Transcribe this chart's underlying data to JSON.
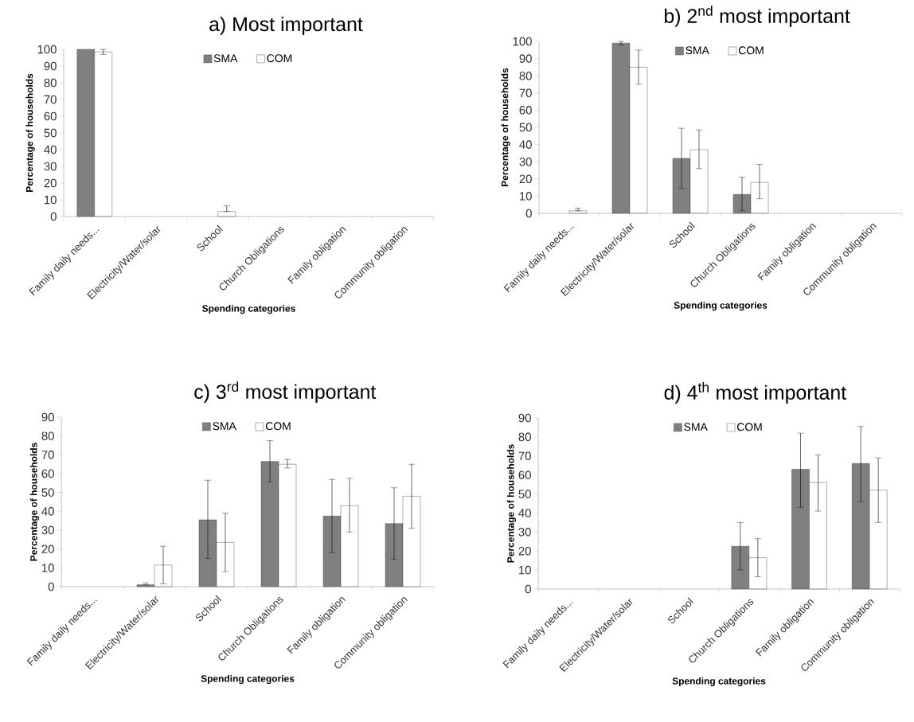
{
  "chart_data": [
    {
      "type": "bar",
      "title": "a) Most important",
      "xlabel": "Spending categories",
      "ylabel": "Percentage of households",
      "categories": [
        "Family daily needs...",
        "Electricity/Water/solar",
        "School",
        "Church Obligations",
        "Family obligation",
        "Community obligation"
      ],
      "series": [
        {
          "name": "SMA",
          "color": "#808080",
          "values": [
            100,
            null,
            null,
            null,
            null,
            null
          ],
          "errors": [
            null,
            null,
            null,
            null,
            null,
            null
          ]
        },
        {
          "name": "COM",
          "color": "#ffffff",
          "values": [
            98.5,
            null,
            3,
            null,
            null,
            null
          ],
          "errors": [
            [
              97,
              100
            ],
            null,
            [
              3,
              6.5
            ],
            null,
            null,
            null
          ]
        }
      ],
      "ylim": [
        0,
        100
      ],
      "yticks": [
        0,
        10,
        20,
        30,
        40,
        50,
        60,
        70,
        80,
        90,
        100
      ],
      "legend": "top"
    },
    {
      "type": "bar",
      "title": "b) 2$^{nd}$  most important",
      "xlabel": "Spending categories",
      "ylabel": "Percentage of households",
      "categories": [
        "Family daily needs...",
        "Electricity/Water/solar",
        "School",
        "Church Obligations",
        "Family obligation",
        "Community obligation"
      ],
      "series": [
        {
          "name": "SMA",
          "color": "#808080",
          "values": [
            null,
            99,
            32,
            11,
            null,
            null
          ],
          "errors": [
            null,
            [
              98,
              100
            ],
            [
              14.5,
              49.5
            ],
            [
              1.5,
              21
            ],
            null,
            null
          ]
        },
        {
          "name": "COM",
          "color": "#ffffff",
          "values": [
            1.5,
            85,
            37,
            18,
            null,
            null
          ],
          "errors": [
            [
              1.5,
              3
            ],
            [
              75,
              95
            ],
            [
              26,
              48.5
            ],
            [
              8.5,
              28.5
            ],
            null,
            null
          ]
        }
      ],
      "ylim": [
        0,
        100
      ],
      "yticks": [
        0,
        10,
        20,
        30,
        40,
        50,
        60,
        70,
        80,
        90,
        100
      ],
      "legend": "top"
    },
    {
      "type": "bar",
      "title": "c) 3$^{rd}$ most important",
      "xlabel": "Spending categories",
      "ylabel": "Percentage of households",
      "categories": [
        "Family daily needs...",
        "Electricity/Water/solar",
        "School",
        "Church Obligations",
        "Family obligation",
        "Community obligation"
      ],
      "series": [
        {
          "name": "SMA",
          "color": "#808080",
          "values": [
            null,
            1,
            35.5,
            66.5,
            37.5,
            33.5
          ],
          "errors": [
            null,
            [
              1,
              2
            ],
            [
              15,
              56.5
            ],
            [
              55.5,
              77.5
            ],
            [
              18,
              57
            ],
            [
              14.5,
              52.5
            ]
          ]
        },
        {
          "name": "COM",
          "color": "#ffffff",
          "values": [
            null,
            11.5,
            23.5,
            65,
            43,
            48
          ],
          "errors": [
            null,
            [
              1.5,
              21.5
            ],
            [
              8,
              39
            ],
            [
              63,
              67.5
            ],
            [
              29,
              57.5
            ],
            [
              31,
              65
            ]
          ]
        }
      ],
      "ylim": [
        0,
        90
      ],
      "yticks": [
        0,
        10,
        20,
        30,
        40,
        50,
        60,
        70,
        80,
        90
      ],
      "legend": "top"
    },
    {
      "type": "bar",
      "title": "d) 4$^{th}$ most important",
      "xlabel": "Spending categories",
      "ylabel": "Percentage of households",
      "categories": [
        "Family daily needs...",
        "Electricity/Water/solar",
        "School",
        "Church Obligations",
        "Family obligation",
        "Community obligation"
      ],
      "series": [
        {
          "name": "SMA",
          "color": "#808080",
          "values": [
            null,
            null,
            null,
            22.5,
            63,
            66
          ],
          "errors": [
            null,
            null,
            null,
            [
              10,
              35
            ],
            [
              43,
              82
            ],
            [
              46,
              85.5
            ]
          ]
        },
        {
          "name": "COM",
          "color": "#ffffff",
          "values": [
            null,
            null,
            null,
            16.5,
            56,
            52
          ],
          "errors": [
            null,
            null,
            null,
            [
              6.5,
              26.5
            ],
            [
              41,
              70.5
            ],
            [
              35,
              69
            ]
          ]
        }
      ],
      "ylim": [
        0,
        90
      ],
      "yticks": [
        0,
        10,
        20,
        30,
        40,
        50,
        60,
        70,
        80,
        90
      ],
      "legend": "top"
    }
  ]
}
